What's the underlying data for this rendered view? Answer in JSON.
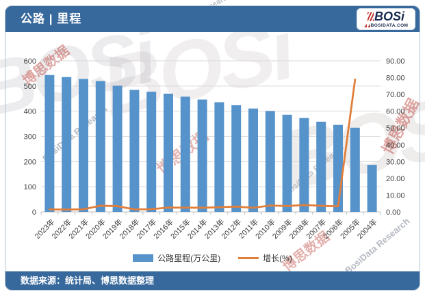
{
  "header": {
    "title": "公路 | 里程",
    "logo": {
      "text": "BOSi",
      "subtext": "BOSIDATA.COM"
    }
  },
  "footer": {
    "source": "数据来源：统计局、博思数据整理"
  },
  "legend": {
    "bar_label": "公路里程(万公里)",
    "line_label": "增长(%)"
  },
  "watermark": {
    "brand": "BOSi",
    "cn": "博思数据",
    "en": "BosiData Research"
  },
  "chart_data": {
    "type": "bar",
    "subtype": "bar+line combo, dual axis",
    "title": "公路 | 里程",
    "categories": [
      "2023年",
      "2022年",
      "2021年",
      "2020年",
      "2019年",
      "2018年",
      "2017年",
      "2016年",
      "2015年",
      "2014年",
      "2013年",
      "2012年",
      "2011年",
      "2010年",
      "2009年",
      "2008年",
      "2007年",
      "2006年",
      "2005年",
      "2004年"
    ],
    "series": [
      {
        "name": "公路里程(万公里)",
        "type": "bar",
        "axis": "left",
        "color": "#5693cb",
        "values": [
          543.68,
          535.48,
          528.07,
          519.81,
          501.25,
          484.65,
          477.35,
          469.63,
          457.73,
          446.39,
          435.62,
          423.75,
          410.64,
          400.82,
          386.08,
          373.02,
          358.37,
          345.7,
          334.52,
          187.07
        ]
      },
      {
        "name": "增长(%)",
        "type": "line",
        "axis": "right",
        "color": "#e17f3a",
        "values": [
          1.53,
          1.4,
          1.59,
          3.7,
          3.43,
          1.53,
          1.64,
          2.6,
          2.54,
          2.47,
          2.8,
          3.19,
          2.45,
          3.82,
          3.5,
          4.09,
          3.67,
          3.34,
          78.83,
          null
        ]
      }
    ],
    "left_axis": {
      "min": 0,
      "max": 600,
      "step": 100,
      "ticks": [
        "0",
        "100",
        "200",
        "300",
        "400",
        "500",
        "600"
      ]
    },
    "right_axis": {
      "min": 0,
      "max": 90,
      "step": 10,
      "ticks": [
        "0.00",
        "10.00",
        "20.00",
        "30.00",
        "40.00",
        "50.00",
        "60.00",
        "70.00",
        "80.00",
        "90.00"
      ]
    },
    "grid": "horizontal gridlines on left-axis steps",
    "legend_position": "bottom"
  }
}
